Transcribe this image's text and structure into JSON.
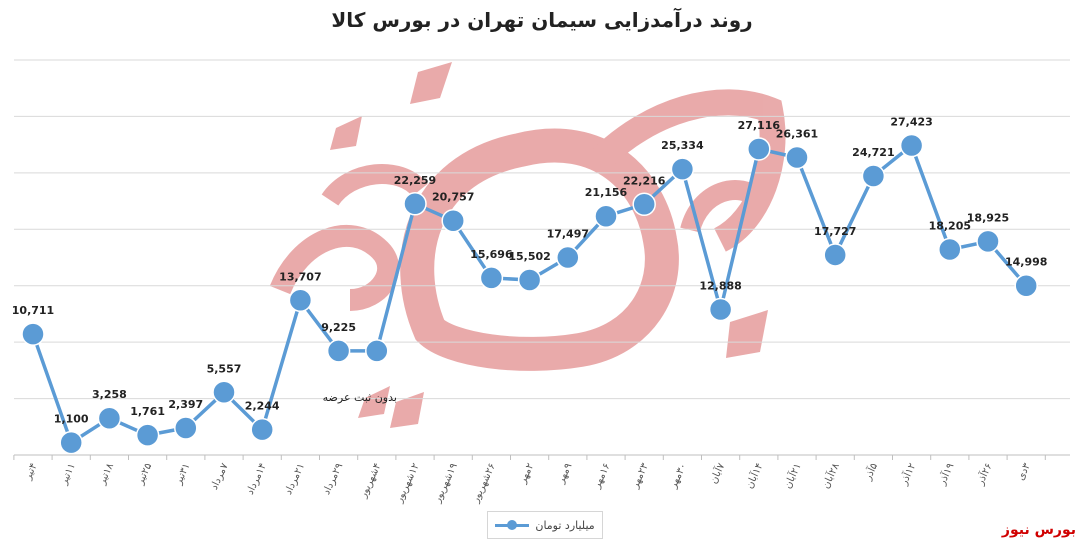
{
  "chart_data": {
    "type": "line",
    "title": "روند درآمدزایی سیمان تهران در بورس کالا",
    "categories": [
      "۴تیر",
      "۱۱تیر",
      "۱۸تیر",
      "۲۵تیر",
      "۳۱تیر",
      "۷مرداد",
      "۱۴مرداد",
      "۲۱مرداد",
      "۲۹مرداد",
      "۴شهریور",
      "۱۲شهریور",
      "۱۹شهریور",
      "۲۶شهریور",
      "۲مهر",
      "۹مهر",
      "۱۶مهر",
      "۲۳مهر",
      "۳۰مهر",
      "۷آبان",
      "۱۴آبان",
      "۲۱آبان",
      "۲۸آبان",
      "۵آذر",
      "۱۲آذر",
      "۱۹آذر",
      "۲۶آذر",
      "۳دی"
    ],
    "series": [
      {
        "name": "میلیارد تومان",
        "values": [
          10711,
          1100,
          3258,
          1761,
          2397,
          5557,
          2244,
          13707,
          9225,
          9225,
          22259,
          20757,
          15696,
          15502,
          17497,
          21156,
          22216,
          25334,
          12888,
          27116,
          26361,
          17727,
          24721,
          27423,
          18205,
          18925,
          14998
        ],
        "labels": [
          "10,711",
          "1,100",
          "3,258",
          "1,761",
          "2,397",
          "5,557",
          "2,244",
          "13,707",
          "9,225",
          "",
          "22,259",
          "20,757",
          "15,696",
          "15,502",
          "17,497",
          "21,156",
          "22,216",
          "25,334",
          "12,888",
          "27,116",
          "26,361",
          "17,727",
          "24,721",
          "27,423",
          "18,205",
          "18,925",
          "14,998"
        ]
      }
    ],
    "annotations": [
      {
        "text": "بدون ثبت عرضه",
        "index": 9
      }
    ],
    "ylim": [
      0,
      35000
    ],
    "grid": true,
    "legend": "bottom",
    "color": "#5b9bd5"
  },
  "watermark": {
    "text": "بورس نیوز",
    "color": "#e8a6a6"
  },
  "source_label": "بورس نیوز"
}
